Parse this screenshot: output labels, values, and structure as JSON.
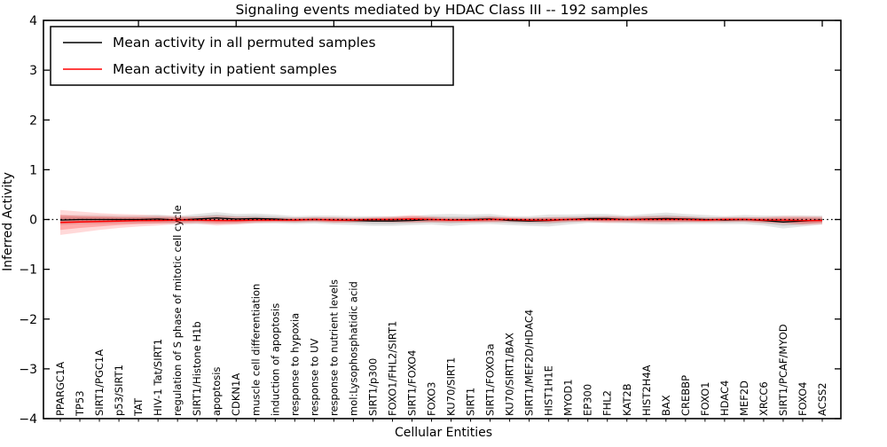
{
  "figure": {
    "title": "Signaling events mediated by HDAC Class III -- 192 samples",
    "xlabel": "Cellular Entities",
    "ylabel": "Inferred Activity"
  },
  "chart_data": {
    "type": "line",
    "title": "Signaling events mediated by HDAC Class III -- 192 samples",
    "xlabel": "Cellular Entities",
    "ylabel": "Inferred Activity",
    "ylim": [
      -4,
      4
    ],
    "yticks": [
      -4,
      -3,
      -2,
      -1,
      0,
      1,
      2,
      3,
      4
    ],
    "x_major_ticks_at_indices": [
      4,
      9,
      14,
      19,
      24,
      29,
      34,
      39
    ],
    "grid": false,
    "legend_position": "upper left",
    "background_color": "#ffffff",
    "reference_line": {
      "y": 0,
      "style": "dotted",
      "color": "#000000"
    },
    "categories": [
      "PPARGC1A",
      "TP53",
      "SIRT1/PGC1A",
      "p53/SIRT1",
      "TAT",
      "HIV-1 Tat/SIRT1",
      "regulation of S phase of mitotic cell cycle",
      "SIRT1/Histone H1b",
      "apoptosis",
      "CDKN1A",
      "muscle cell differentiation",
      "induction of apoptosis",
      "response to hypoxia",
      "response to UV",
      "response to nutrient levels",
      "mol:Lysophosphatidic acid",
      "SIRT1/p300",
      "FOXO1/FHL2/SIRT1",
      "SIRT1/FOXO4",
      "FOXO3",
      "KU70/SIRT1",
      "SIRT1",
      "SIRT1/FOXO3a",
      "KU70/SIRT1/BAX",
      "SIRT1/MEF2D/HDAC4",
      "HIST1H1E",
      "MYOD1",
      "EP300",
      "FHL2",
      "KAT2B",
      "HIST2H4A",
      "BAX",
      "CREBBP",
      "FOXO1",
      "HDAC4",
      "MEF2D",
      "XRCC6",
      "SIRT1/PCAF/MYOD",
      "FOXO4",
      "ACSS2"
    ],
    "series": [
      {
        "name": "Mean activity in all permuted samples",
        "color": "#000000",
        "band_color": "#000000",
        "band_inner_alpha": 0.1,
        "band_outer_alpha": 0.1,
        "values": [
          -0.01,
          0.0,
          0.0,
          0.0,
          0.0,
          0.01,
          -0.01,
          0.01,
          0.03,
          0.01,
          0.02,
          0.01,
          -0.01,
          0.0,
          -0.01,
          -0.02,
          -0.03,
          -0.03,
          -0.02,
          0.0,
          -0.01,
          0.0,
          0.01,
          -0.02,
          -0.03,
          -0.02,
          0.0,
          0.02,
          0.02,
          0.0,
          0.01,
          0.02,
          0.01,
          0.0,
          -0.01,
          0.0,
          -0.02,
          -0.05,
          -0.03,
          -0.01
        ],
        "band_inner": [
          0.06,
          0.05,
          0.05,
          0.05,
          0.05,
          0.05,
          0.05,
          0.06,
          0.07,
          0.06,
          0.06,
          0.05,
          0.05,
          0.05,
          0.05,
          0.05,
          0.06,
          0.06,
          0.05,
          0.06,
          0.07,
          0.06,
          0.06,
          0.05,
          0.06,
          0.07,
          0.06,
          0.05,
          0.05,
          0.05,
          0.06,
          0.07,
          0.06,
          0.05,
          0.05,
          0.05,
          0.06,
          0.08,
          0.07,
          0.05
        ],
        "band_outer": [
          0.1,
          0.09,
          0.09,
          0.08,
          0.08,
          0.09,
          0.08,
          0.1,
          0.12,
          0.1,
          0.1,
          0.09,
          0.08,
          0.08,
          0.09,
          0.09,
          0.1,
          0.1,
          0.09,
          0.1,
          0.12,
          0.1,
          0.1,
          0.09,
          0.1,
          0.12,
          0.1,
          0.09,
          0.09,
          0.08,
          0.1,
          0.12,
          0.1,
          0.09,
          0.08,
          0.09,
          0.1,
          0.13,
          0.11,
          0.09
        ]
      },
      {
        "name": "Mean activity in patient samples",
        "color": "#ff0000",
        "band_color": "#ff0000",
        "band_inner_alpha": 0.22,
        "band_outer_alpha": 0.15,
        "values": [
          -0.06,
          -0.05,
          -0.04,
          -0.03,
          -0.02,
          -0.02,
          -0.01,
          -0.01,
          -0.02,
          -0.02,
          -0.01,
          -0.01,
          -0.01,
          0.0,
          -0.01,
          -0.01,
          0.0,
          0.0,
          0.01,
          0.0,
          -0.01,
          -0.01,
          0.0,
          0.0,
          -0.01,
          -0.01,
          0.0,
          0.0,
          0.0,
          0.0,
          0.0,
          0.0,
          0.0,
          -0.01,
          0.0,
          0.0,
          -0.01,
          -0.01,
          -0.02,
          -0.02
        ],
        "band_inner": [
          0.15,
          0.12,
          0.1,
          0.08,
          0.07,
          0.06,
          0.05,
          0.04,
          0.06,
          0.05,
          0.04,
          0.03,
          0.03,
          0.03,
          0.04,
          0.03,
          0.03,
          0.04,
          0.05,
          0.04,
          0.03,
          0.03,
          0.04,
          0.03,
          0.03,
          0.04,
          0.03,
          0.03,
          0.04,
          0.03,
          0.04,
          0.04,
          0.04,
          0.03,
          0.03,
          0.03,
          0.04,
          0.05,
          0.06,
          0.05
        ],
        "band_outer": [
          0.25,
          0.21,
          0.17,
          0.14,
          0.12,
          0.1,
          0.08,
          0.07,
          0.1,
          0.08,
          0.06,
          0.05,
          0.05,
          0.05,
          0.06,
          0.05,
          0.05,
          0.06,
          0.08,
          0.06,
          0.05,
          0.05,
          0.06,
          0.05,
          0.05,
          0.06,
          0.05,
          0.05,
          0.07,
          0.06,
          0.07,
          0.07,
          0.06,
          0.05,
          0.05,
          0.05,
          0.06,
          0.08,
          0.09,
          0.08
        ]
      }
    ]
  }
}
